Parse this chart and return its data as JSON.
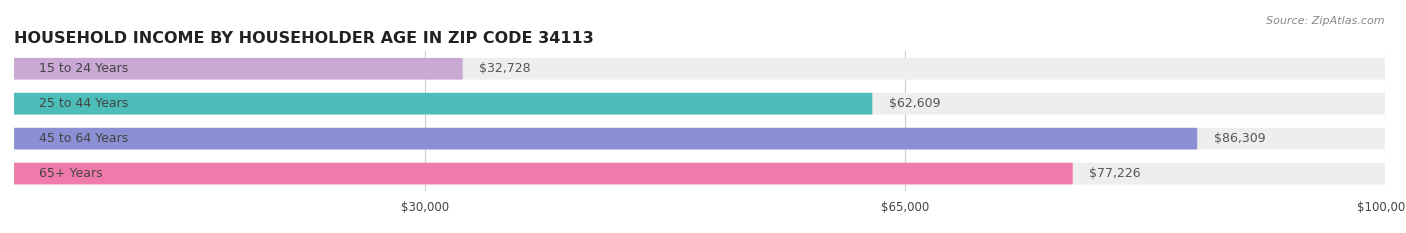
{
  "title": "HOUSEHOLD INCOME BY HOUSEHOLDER AGE IN ZIP CODE 34113",
  "source": "Source: ZipAtlas.com",
  "categories": [
    "15 to 24 Years",
    "25 to 44 Years",
    "45 to 64 Years",
    "65+ Years"
  ],
  "values": [
    32728,
    62609,
    86309,
    77226
  ],
  "bar_colors": [
    "#c9a8d4",
    "#4dbdba",
    "#8b8fd4",
    "#f07baa"
  ],
  "bar_bg_color": "#eeeeee",
  "bg_color": "#ffffff",
  "xlim": [
    0,
    100000
  ],
  "xtick_vals": [
    30000,
    65000,
    100000
  ],
  "xtick_labels": [
    "$30,000",
    "$65,000",
    "$100,000"
  ],
  "title_fontsize": 11.5,
  "label_fontsize": 9,
  "value_fontsize": 9,
  "bar_height": 0.62,
  "grid_color": "#cccccc",
  "label_color": "#444444",
  "value_color": "#555555",
  "title_color": "#222222",
  "source_color": "#888888"
}
